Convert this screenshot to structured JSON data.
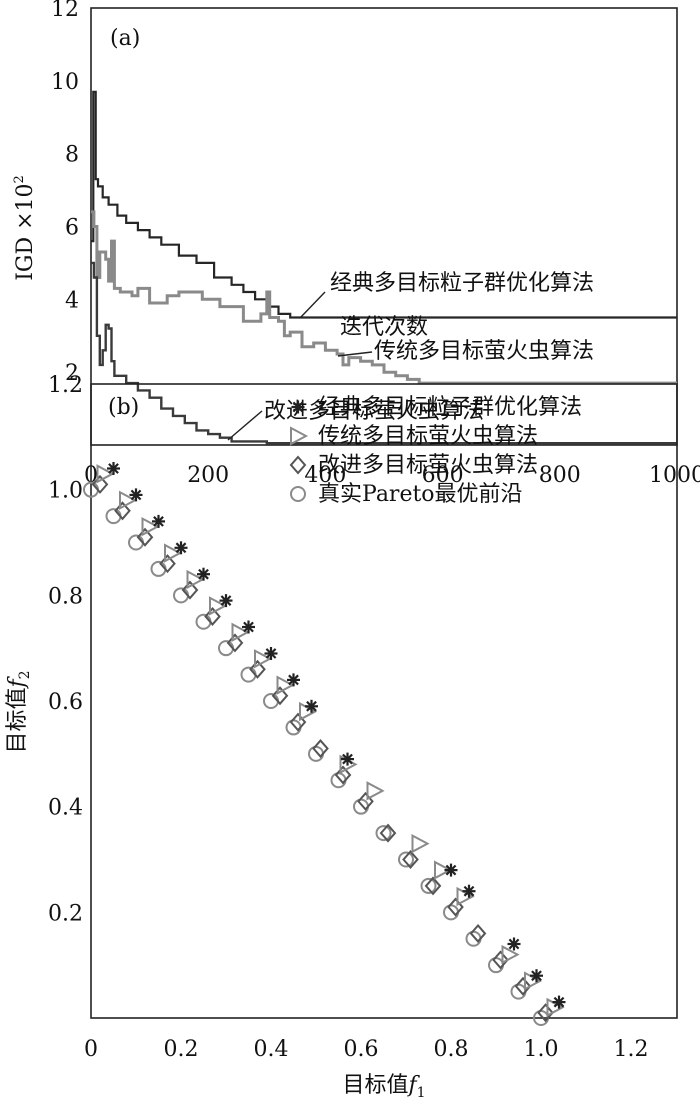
{
  "chart_data": [
    {
      "type": "line",
      "panel_label": "(a)",
      "xlabel": "迭代次数",
      "ylabel": "IGD ×10",
      "ylabel_exponent": "2",
      "xlim": [
        0,
        1000
      ],
      "ylim": [
        0,
        12
      ],
      "x_ticks": [
        "0",
        "200",
        "400",
        "600",
        "800",
        "1000"
      ],
      "y_ticks": [
        "2",
        "4",
        "6",
        "8",
        "10",
        "12"
      ],
      "x_tick_values": [
        0,
        200,
        400,
        600,
        800,
        1000
      ],
      "y_tick_values": [
        2,
        4,
        6,
        8,
        10,
        12
      ],
      "grid": false,
      "colors": {
        "frame": "#222222",
        "series1": "#262626",
        "series2": "#8a8a8a",
        "series3": "#3a3a3a"
      },
      "series": [
        {
          "name": "经典多目标粒子群优化算法",
          "points": [
            [
              0,
              5.6
            ],
            [
              4,
              9.7
            ],
            [
              8,
              7.3
            ],
            [
              12,
              7.1
            ],
            [
              20,
              6.8
            ],
            [
              30,
              6.6
            ],
            [
              45,
              6.3
            ],
            [
              60,
              6.1
            ],
            [
              80,
              5.9
            ],
            [
              100,
              5.7
            ],
            [
              120,
              5.5
            ],
            [
              150,
              5.2
            ],
            [
              180,
              5.0
            ],
            [
              210,
              4.6
            ],
            [
              240,
              4.4
            ],
            [
              260,
              4.2
            ],
            [
              280,
              4.0
            ],
            [
              300,
              3.8
            ],
            [
              320,
              3.6
            ],
            [
              340,
              3.5
            ],
            [
              360,
              3.5
            ],
            [
              400,
              3.5
            ],
            [
              500,
              3.5
            ],
            [
              600,
              3.5
            ],
            [
              800,
              3.5
            ],
            [
              1000,
              3.5
            ]
          ]
        },
        {
          "name": "传统多目标萤火虫算法",
          "points": [
            [
              0,
              6.4
            ],
            [
              5,
              6.0
            ],
            [
              10,
              4.6
            ],
            [
              15,
              5.3
            ],
            [
              25,
              5.1
            ],
            [
              30,
              4.5
            ],
            [
              35,
              5.6
            ],
            [
              40,
              4.3
            ],
            [
              50,
              4.2
            ],
            [
              70,
              4.1
            ],
            [
              80,
              4.3
            ],
            [
              100,
              3.9
            ],
            [
              130,
              4.1
            ],
            [
              150,
              4.2
            ],
            [
              190,
              4.0
            ],
            [
              220,
              3.8
            ],
            [
              260,
              3.4
            ],
            [
              290,
              3.6
            ],
            [
              300,
              4.2
            ],
            [
              305,
              3.5
            ],
            [
              320,
              3.4
            ],
            [
              330,
              3.0
            ],
            [
              340,
              3.1
            ],
            [
              360,
              2.7
            ],
            [
              380,
              2.8
            ],
            [
              400,
              2.6
            ],
            [
              420,
              2.5
            ],
            [
              430,
              2.2
            ],
            [
              440,
              2.4
            ],
            [
              460,
              2.3
            ],
            [
              480,
              2.2
            ],
            [
              500,
              2.0
            ],
            [
              520,
              1.9
            ],
            [
              540,
              1.8
            ],
            [
              560,
              1.7
            ],
            [
              600,
              1.7
            ],
            [
              800,
              1.7
            ],
            [
              1000,
              1.7
            ]
          ]
        },
        {
          "name": "改进多目标萤火虫算法",
          "points": [
            [
              0,
              5.0
            ],
            [
              5,
              4.6
            ],
            [
              10,
              3.0
            ],
            [
              15,
              2.2
            ],
            [
              20,
              2.6
            ],
            [
              25,
              3.3
            ],
            [
              30,
              3.2
            ],
            [
              35,
              2.3
            ],
            [
              40,
              1.9
            ],
            [
              60,
              1.7
            ],
            [
              80,
              1.5
            ],
            [
              100,
              1.3
            ],
            [
              120,
              1.0
            ],
            [
              140,
              0.8
            ],
            [
              160,
              0.6
            ],
            [
              180,
              0.4
            ],
            [
              200,
              0.3
            ],
            [
              220,
              0.2
            ],
            [
              240,
              0.1
            ],
            [
              300,
              0.05
            ],
            [
              600,
              0.05
            ],
            [
              1000,
              0.05
            ]
          ]
        }
      ]
    },
    {
      "type": "scatter",
      "panel_label": "(b)",
      "xlabel": "目标值",
      "xlabel_var": "f",
      "xlabel_sub": "1",
      "ylabel": "目标值",
      "ylabel_var": "f",
      "ylabel_sub": "2",
      "xlim": [
        0,
        1.3
      ],
      "ylim": [
        0,
        1.2
      ],
      "x_ticks": [
        "0",
        "0.2",
        "0.4",
        "0.6",
        "0.8",
        "1.0",
        "1.2"
      ],
      "y_ticks": [
        "0.2",
        "0.4",
        "0.6",
        "0.8",
        "1.0",
        "1.2"
      ],
      "x_tick_values": [
        0,
        0.2,
        0.4,
        0.6,
        0.8,
        1.0,
        1.2
      ],
      "y_tick_values": [
        0.2,
        0.4,
        0.6,
        0.8,
        1.0,
        1.2
      ],
      "grid": false,
      "legend_position": "top-right",
      "series": [
        {
          "name": "经典多目标粒子群优化算法",
          "marker": "asterisk",
          "color": "#222222",
          "points": [
            [
              0.05,
              1.04
            ],
            [
              0.1,
              0.99
            ],
            [
              0.15,
              0.94
            ],
            [
              0.2,
              0.89
            ],
            [
              0.25,
              0.84
            ],
            [
              0.3,
              0.79
            ],
            [
              0.35,
              0.74
            ],
            [
              0.4,
              0.69
            ],
            [
              0.45,
              0.64
            ],
            [
              0.49,
              0.59
            ],
            [
              0.57,
              0.49
            ],
            [
              0.8,
              0.28
            ],
            [
              0.84,
              0.24
            ],
            [
              0.94,
              0.14
            ],
            [
              0.99,
              0.08
            ],
            [
              1.04,
              0.03
            ]
          ]
        },
        {
          "name": "传统多目标萤火虫算法",
          "marker": "triangle-right",
          "color": "#8a8a8a",
          "points": [
            [
              0.03,
              1.03
            ],
            [
              0.08,
              0.98
            ],
            [
              0.13,
              0.93
            ],
            [
              0.18,
              0.88
            ],
            [
              0.23,
              0.83
            ],
            [
              0.28,
              0.78
            ],
            [
              0.33,
              0.73
            ],
            [
              0.38,
              0.68
            ],
            [
              0.43,
              0.63
            ],
            [
              0.48,
              0.58
            ],
            [
              0.57,
              0.48
            ],
            [
              0.63,
              0.43
            ],
            [
              0.73,
              0.33
            ],
            [
              0.78,
              0.28
            ],
            [
              0.83,
              0.23
            ],
            [
              0.93,
              0.12
            ],
            [
              0.98,
              0.07
            ],
            [
              1.03,
              0.02
            ]
          ]
        },
        {
          "name": "改进多目标萤火虫算法",
          "marker": "diamond",
          "color": "#555555",
          "points": [
            [
              0.02,
              1.01
            ],
            [
              0.07,
              0.96
            ],
            [
              0.12,
              0.91
            ],
            [
              0.17,
              0.86
            ],
            [
              0.22,
              0.81
            ],
            [
              0.27,
              0.76
            ],
            [
              0.32,
              0.71
            ],
            [
              0.37,
              0.66
            ],
            [
              0.42,
              0.61
            ],
            [
              0.46,
              0.56
            ],
            [
              0.51,
              0.51
            ],
            [
              0.56,
              0.46
            ],
            [
              0.61,
              0.41
            ],
            [
              0.66,
              0.35
            ],
            [
              0.71,
              0.3
            ],
            [
              0.76,
              0.25
            ],
            [
              0.81,
              0.21
            ],
            [
              0.86,
              0.16
            ],
            [
              0.91,
              0.11
            ],
            [
              0.96,
              0.06
            ],
            [
              1.01,
              0.01
            ]
          ]
        },
        {
          "name": "真实Pareto最优前沿",
          "marker": "circle",
          "color": "#8a8a8a",
          "points": [
            [
              0.0,
              1.0
            ],
            [
              0.05,
              0.95
            ],
            [
              0.1,
              0.9
            ],
            [
              0.15,
              0.85
            ],
            [
              0.2,
              0.8
            ],
            [
              0.25,
              0.75
            ],
            [
              0.3,
              0.7
            ],
            [
              0.35,
              0.65
            ],
            [
              0.4,
              0.6
            ],
            [
              0.45,
              0.55
            ],
            [
              0.5,
              0.5
            ],
            [
              0.55,
              0.45
            ],
            [
              0.6,
              0.4
            ],
            [
              0.65,
              0.35
            ],
            [
              0.7,
              0.3
            ],
            [
              0.75,
              0.25
            ],
            [
              0.8,
              0.2
            ],
            [
              0.85,
              0.15
            ],
            [
              0.9,
              0.1
            ],
            [
              0.95,
              0.05
            ],
            [
              1.0,
              0.0
            ]
          ]
        }
      ]
    }
  ]
}
